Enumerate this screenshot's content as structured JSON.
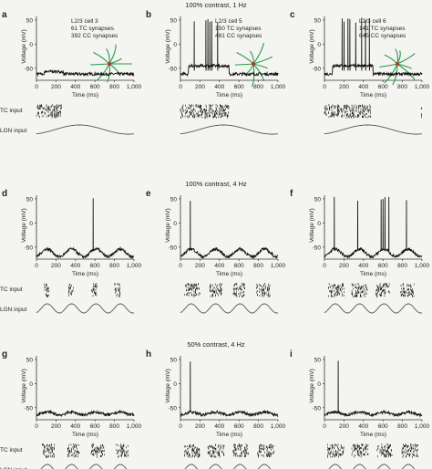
{
  "rows": [
    {
      "title": "100% contrast, 1 Hz",
      "freq": 1
    },
    {
      "title": "100% contrast, 4 Hz",
      "freq": 4
    },
    {
      "title": "50% contrast, 4 Hz",
      "freq": 4
    }
  ],
  "axes": {
    "ylabel": "Voltage (mV)",
    "xlabel": "Time (ms)",
    "yticks": [
      "50",
      "0",
      "-50"
    ],
    "xticks": [
      "0",
      "200",
      "400",
      "600",
      "800",
      "1,000"
    ]
  },
  "inputs": {
    "tc": "TC  input",
    "lgn": "LGN input"
  },
  "cells": [
    {
      "label": "L2/3 cell 3",
      "tc": "61 TC synapses",
      "cc": "392 CC synapses"
    },
    {
      "label": "L2/3 cell 5",
      "tc": "150 TC synapses",
      "cc": "481 CC synapses"
    },
    {
      "label": "L2/3 cell 6",
      "tc": "141 TC synapses",
      "cc": "645 CC synapses"
    }
  ],
  "panels": [
    {
      "letter": "a",
      "spikes": [],
      "raster_windows": [
        [
          0,
          260
        ]
      ]
    },
    {
      "letter": "b",
      "spikes": [
        140,
        190,
        230,
        260,
        280,
        300,
        320,
        350,
        380,
        410
      ],
      "raster_windows": [
        [
          0,
          500
        ]
      ]
    },
    {
      "letter": "c",
      "spikes": [
        150,
        180,
        200,
        240,
        260,
        290,
        320,
        350,
        380,
        420,
        460
      ],
      "raster_windows": [
        [
          0,
          480
        ],
        [
          990,
          1000
        ]
      ]
    },
    {
      "letter": "d",
      "spikes": [
        580
      ],
      "raster_windows": [
        [
          80,
          140
        ],
        [
          330,
          380
        ],
        [
          560,
          620
        ],
        [
          800,
          860
        ]
      ]
    },
    {
      "letter": "e",
      "spikes": [
        100
      ],
      "raster_windows": [
        [
          40,
          200
        ],
        [
          300,
          430
        ],
        [
          540,
          660
        ],
        [
          780,
          920
        ]
      ]
    },
    {
      "letter": "f",
      "spikes": [
        70,
        100,
        130,
        340,
        580,
        600,
        620,
        660,
        840
      ],
      "raster_windows": [
        [
          40,
          200
        ],
        [
          280,
          440
        ],
        [
          530,
          670
        ],
        [
          780,
          920
        ]
      ]
    },
    {
      "letter": "g",
      "spikes": [],
      "raster_windows": [
        [
          60,
          190
        ],
        [
          320,
          440
        ],
        [
          560,
          700
        ],
        [
          820,
          940
        ]
      ]
    },
    {
      "letter": "h",
      "spikes": [
        100
      ],
      "raster_windows": [
        [
          30,
          200
        ],
        [
          280,
          450
        ],
        [
          540,
          700
        ],
        [
          790,
          960
        ]
      ]
    },
    {
      "letter": "i",
      "spikes": [
        90,
        140
      ],
      "raster_windows": [
        [
          30,
          200
        ],
        [
          280,
          450
        ],
        [
          540,
          700
        ],
        [
          790,
          960
        ]
      ]
    }
  ],
  "colors": {
    "trace": "#111111",
    "sine": "#555555",
    "raster": "#111111",
    "neuron_dendrite": "#2a9a4a",
    "neuron_soma": "#c03030"
  }
}
